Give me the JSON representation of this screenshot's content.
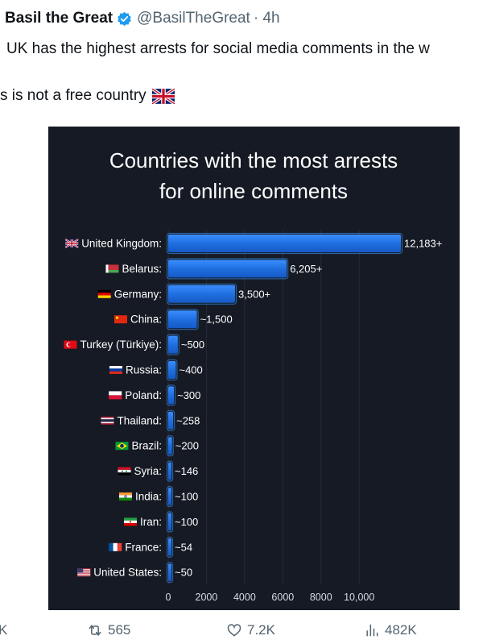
{
  "tweet": {
    "author_name": "Basil the Great",
    "handle": "@BasilTheGreat",
    "time": "· 4h",
    "text_line1": "UK has the highest arrests for social media comments in the w",
    "text_line2": "s is not a free country"
  },
  "actions": {
    "reply_count": "K",
    "retweet_count": "565",
    "like_count": "7.2K",
    "view_count": "482K"
  },
  "colors": {
    "bar_fill": "#1f6fe0",
    "bar_glow": "#3d9bff",
    "card_bg": "#161a24"
  },
  "chart_data": {
    "type": "bar",
    "orientation": "horizontal",
    "title": "Countries with the most arrests for online comments",
    "title_lines": [
      "Countries with the most arrests",
      "for online comments"
    ],
    "categories": [
      "United Kingdom:",
      "Belarus:",
      "Germany:",
      "China:",
      "Turkey (Türkiye):",
      "Russia:",
      "Poland:",
      "Thailand:",
      "Brazil:",
      "Syria:",
      "India:",
      "Iran:",
      "France:",
      "United States:"
    ],
    "flags": [
      "uk",
      "belarus",
      "germany",
      "china",
      "turkey",
      "russia",
      "poland",
      "thailand",
      "brazil",
      "syria",
      "india",
      "iran",
      "france",
      "usa"
    ],
    "values": [
      12183,
      6205,
      3500,
      1500,
      500,
      400,
      300,
      258,
      200,
      146,
      100,
      100,
      54,
      50
    ],
    "value_labels": [
      "12,183+",
      "6,205+",
      "3,500+",
      "~1,500",
      "~500",
      "~400",
      "~300",
      "~258",
      "~200",
      "~146",
      "~100",
      "~100",
      "~54",
      "~50"
    ],
    "xticks": [
      0,
      2000,
      4000,
      6000,
      8000,
      10000
    ],
    "xtick_labels": [
      "0",
      "2000",
      "4000",
      "6000",
      "8000",
      "10,000"
    ],
    "xlim": [
      0,
      12183
    ],
    "xlabel": "",
    "ylabel": "",
    "grid": "vertical"
  }
}
